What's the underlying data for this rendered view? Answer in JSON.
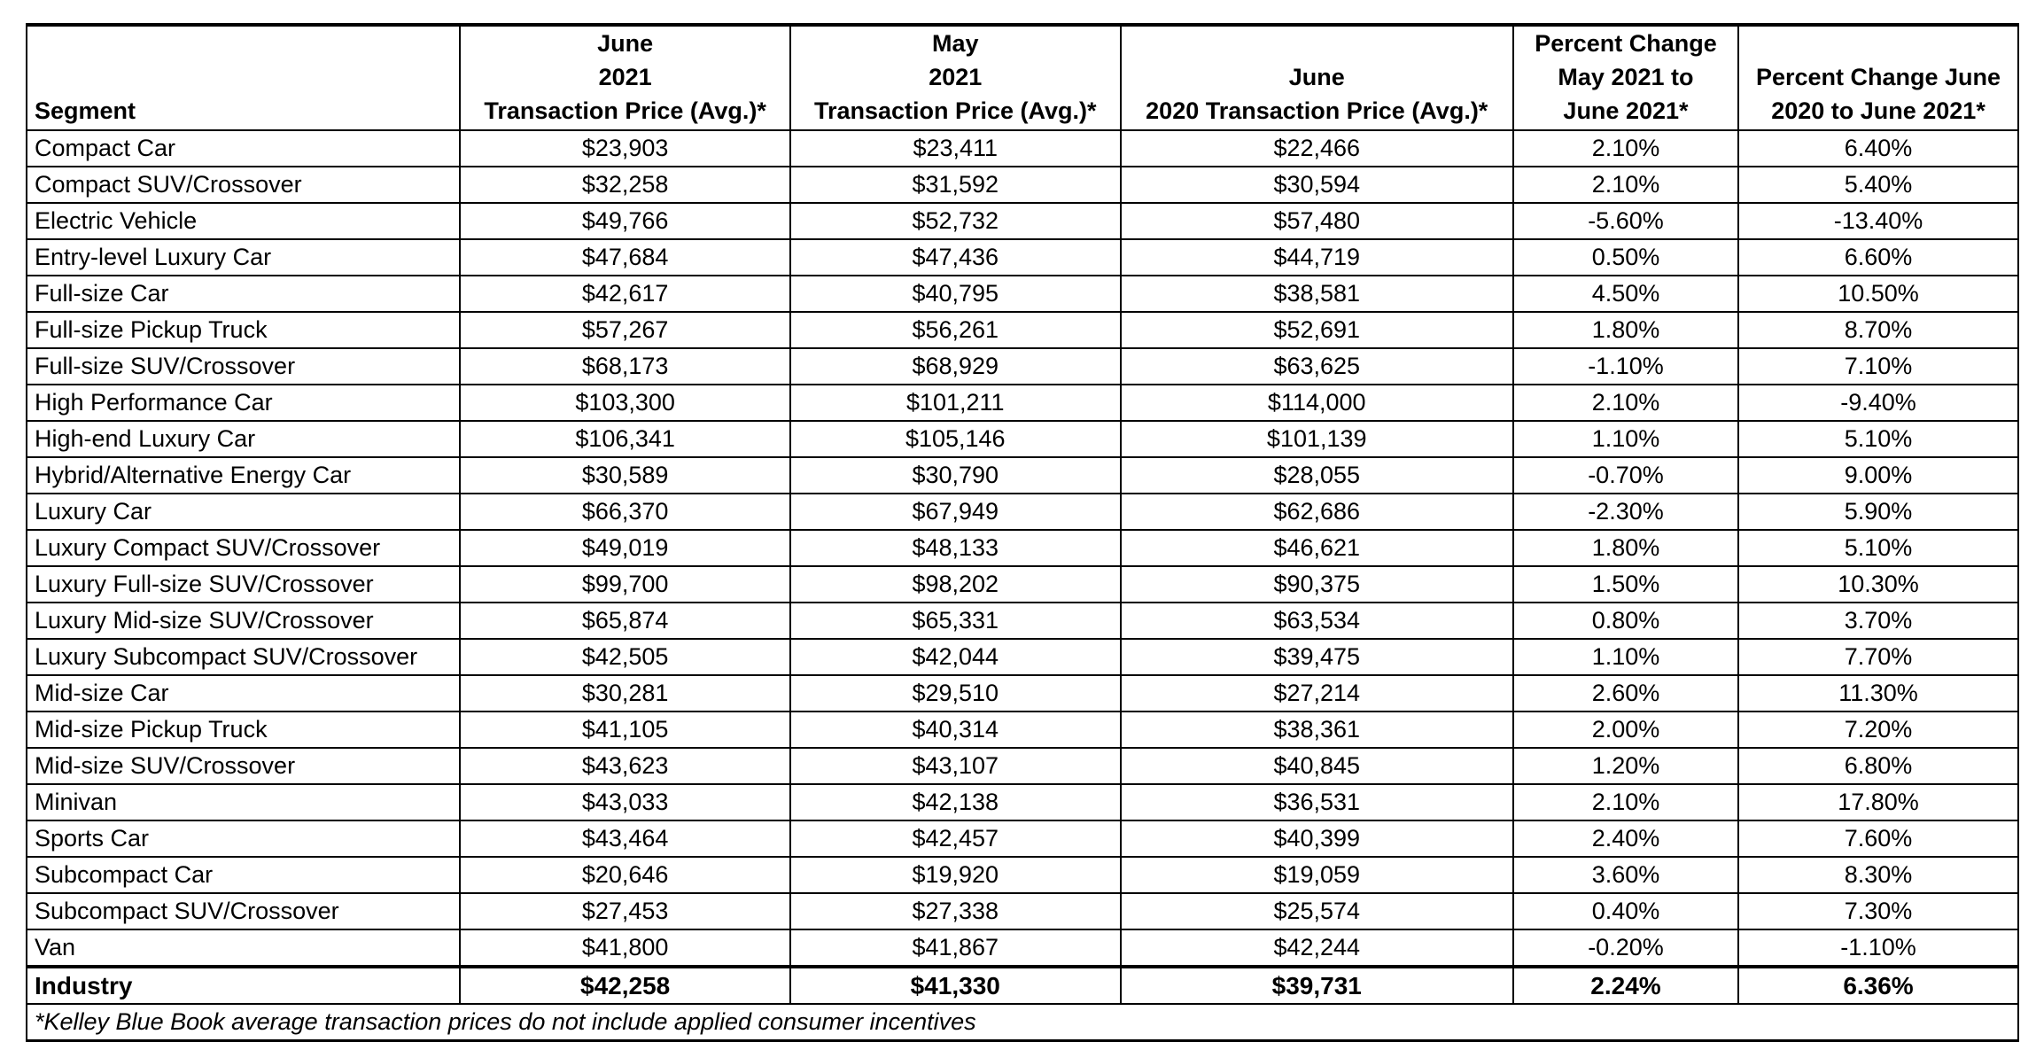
{
  "table": {
    "headers": [
      {
        "lines": [
          "Segment"
        ]
      },
      {
        "lines": [
          "June",
          "2021",
          "Transaction Price (Avg.)*"
        ]
      },
      {
        "lines": [
          "May",
          "2021",
          "Transaction Price (Avg.)*"
        ]
      },
      {
        "lines": [
          "June",
          "2020 Transaction Price (Avg.)*"
        ]
      },
      {
        "lines": [
          "Percent Change",
          "May 2021 to",
          "June 2021*"
        ]
      },
      {
        "lines": [
          "Percent Change June",
          "2020 to June 2021*"
        ]
      }
    ],
    "rows": [
      [
        "Compact Car",
        "$23,903",
        "$23,411",
        "$22,466",
        "2.10%",
        "6.40%"
      ],
      [
        "Compact SUV/Crossover",
        "$32,258",
        "$31,592",
        "$30,594",
        "2.10%",
        "5.40%"
      ],
      [
        "Electric Vehicle",
        "$49,766",
        "$52,732",
        "$57,480",
        "-5.60%",
        "-13.40%"
      ],
      [
        "Entry-level Luxury Car",
        "$47,684",
        "$47,436",
        "$44,719",
        "0.50%",
        "6.60%"
      ],
      [
        "Full-size Car",
        "$42,617",
        "$40,795",
        "$38,581",
        "4.50%",
        "10.50%"
      ],
      [
        "Full-size Pickup Truck",
        "$57,267",
        "$56,261",
        "$52,691",
        "1.80%",
        "8.70%"
      ],
      [
        "Full-size SUV/Crossover",
        "$68,173",
        "$68,929",
        "$63,625",
        "-1.10%",
        "7.10%"
      ],
      [
        "High Performance Car",
        "$103,300",
        "$101,211",
        "$114,000",
        "2.10%",
        "-9.40%"
      ],
      [
        "High-end Luxury Car",
        "$106,341",
        "$105,146",
        "$101,139",
        "1.10%",
        "5.10%"
      ],
      [
        "Hybrid/Alternative Energy Car",
        "$30,589",
        "$30,790",
        "$28,055",
        "-0.70%",
        "9.00%"
      ],
      [
        "Luxury Car",
        "$66,370",
        "$67,949",
        "$62,686",
        "-2.30%",
        "5.90%"
      ],
      [
        "Luxury Compact SUV/Crossover",
        "$49,019",
        "$48,133",
        "$46,621",
        "1.80%",
        "5.10%"
      ],
      [
        "Luxury Full-size SUV/Crossover",
        "$99,700",
        "$98,202",
        "$90,375",
        "1.50%",
        "10.30%"
      ],
      [
        "Luxury Mid-size SUV/Crossover",
        "$65,874",
        "$65,331",
        "$63,534",
        "0.80%",
        "3.70%"
      ],
      [
        "Luxury Subcompact SUV/Crossover",
        "$42,505",
        "$42,044",
        "$39,475",
        "1.10%",
        "7.70%"
      ],
      [
        "Mid-size Car",
        "$30,281",
        "$29,510",
        "$27,214",
        "2.60%",
        "11.30%"
      ],
      [
        "Mid-size Pickup Truck",
        "$41,105",
        "$40,314",
        "$38,361",
        "2.00%",
        "7.20%"
      ],
      [
        "Mid-size SUV/Crossover",
        "$43,623",
        "$43,107",
        "$40,845",
        "1.20%",
        "6.80%"
      ],
      [
        "Minivan",
        "$43,033",
        "$42,138",
        "$36,531",
        "2.10%",
        "17.80%"
      ],
      [
        "Sports Car",
        "$43,464",
        "$42,457",
        "$40,399",
        "2.40%",
        "7.60%"
      ],
      [
        "Subcompact Car",
        "$20,646",
        "$19,920",
        "$19,059",
        "3.60%",
        "8.30%"
      ],
      [
        "Subcompact SUV/Crossover",
        "$27,453",
        "$27,338",
        "$25,574",
        "0.40%",
        "7.30%"
      ],
      [
        "Van",
        "$41,800",
        "$41,867",
        "$42,244",
        "-0.20%",
        "-1.10%"
      ]
    ],
    "industry": [
      "Industry",
      "$42,258",
      "$41,330",
      "$39,731",
      "2.24%",
      "6.36%"
    ],
    "footnote": "*Kelley Blue Book average transaction prices do not include applied consumer incentives"
  }
}
